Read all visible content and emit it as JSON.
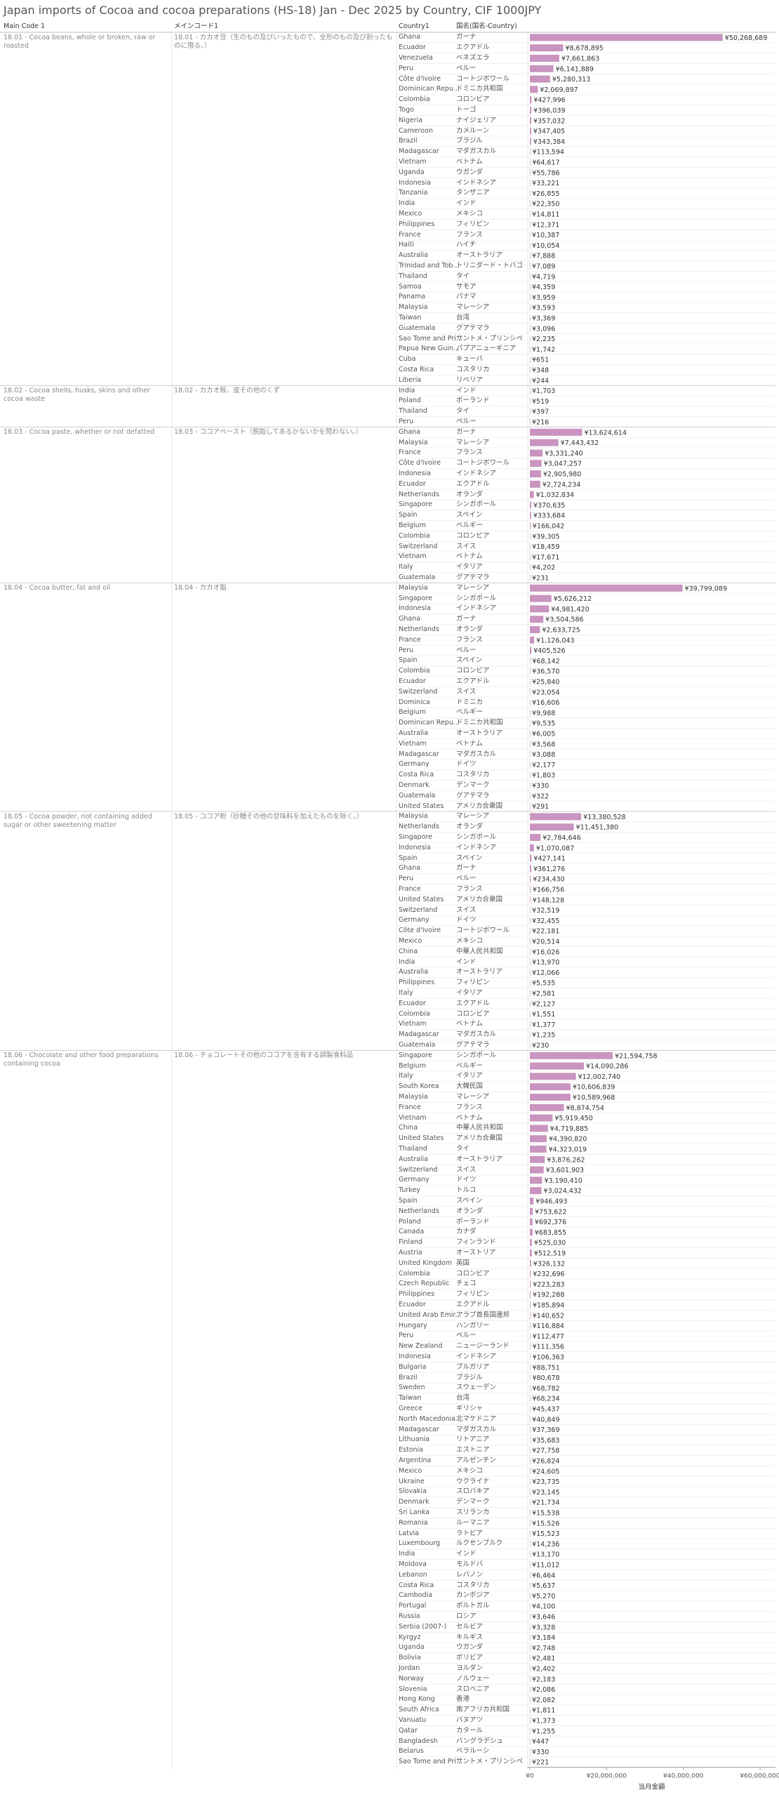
{
  "chart_data": {
    "type": "bar",
    "title": "Japan imports of Cocoa and cocoa preparations (HS-18) Jan - Dec 2025 by Country, CIF 1000JPY",
    "headers": [
      "Main Code 1",
      "メインコード1",
      "Country1",
      "国名(国名-Country)"
    ],
    "x_label": "当月金額",
    "color": "#c994bf",
    "xlim": [
      0,
      60000000
    ],
    "xticks": [
      {
        "value": 0,
        "label": "¥0"
      },
      {
        "value": 20000000,
        "label": "¥20,000,000"
      },
      {
        "value": 40000000,
        "label": "¥40,000,000"
      },
      {
        "value": 60000000,
        "label": "¥60,000,000"
      }
    ],
    "groups": [
      {
        "code": "18.01 - Cocoa beans, whole or broken, raw or roasted",
        "code_jp": "18.01 - カカオ豆（生のもの及びいったもので、全形のもの及び割ったものに限る。）",
        "categories": [
          "Ghana",
          "Ecuador",
          "Venezuela",
          "Peru",
          "Côte d'Ivoire",
          "Dominican Repu...",
          "Colombia",
          "Togo",
          "Nigeria",
          "Cameroon",
          "Brazil",
          "Madagascar",
          "Vietnam",
          "Uganda",
          "Indonesia",
          "Tanzania",
          "India",
          "Mexico",
          "Philippines",
          "France",
          "Haiti",
          "Australia",
          "Trinidad and Tob...",
          "Thailand",
          "Samoa",
          "Panama",
          "Malaysia",
          "Taiwan",
          "Guatemala",
          "Sao Tome and Pri...",
          "Papua New Guin...",
          "Cuba",
          "Costa Rica",
          "Liberia"
        ],
        "categories_jp": [
          "ガーナ",
          "エクアドル",
          "ベネズエラ",
          "ペルー",
          "コートジボワール",
          "ドミニカ共和国",
          "コロンビア",
          "トーゴ",
          "ナイジェリア",
          "カメルーン",
          "ブラジル",
          "マダガスカル",
          "ベトナム",
          "ウガンダ",
          "インドネシア",
          "タンザニア",
          "インド",
          "メキシコ",
          "フィリピン",
          "フランス",
          "ハイチ",
          "オーストラリア",
          "トリニダード・トバゴ",
          "タイ",
          "サモア",
          "パナマ",
          "マレーシア",
          "台湾",
          "グアテマラ",
          "サントメ・プリンシペ",
          "パプアニューギニア",
          "キューバ",
          "コスタリカ",
          "リベリア"
        ],
        "values": [
          50268689,
          8678895,
          7661863,
          6141889,
          5280313,
          2069897,
          427996,
          396039,
          357032,
          347405,
          343384,
          113594,
          64617,
          55786,
          33221,
          26855,
          22350,
          14811,
          12371,
          10387,
          10054,
          7888,
          7089,
          4719,
          4359,
          3959,
          3593,
          3369,
          3096,
          2235,
          1742,
          651,
          348,
          244
        ],
        "value_labels": [
          "¥50,268,689",
          "¥8,678,895",
          "¥7,661,863",
          "¥6,141,889",
          "¥5,280,313",
          "¥2,069,897",
          "¥427,996",
          "¥396,039",
          "¥357,032",
          "¥347,405",
          "¥343,384",
          "¥113,594",
          "¥64,617",
          "¥55,786",
          "¥33,221",
          "¥26,855",
          "¥22,350",
          "¥14,811",
          "¥12,371",
          "¥10,387",
          "¥10,054",
          "¥7,888",
          "¥7,089",
          "¥4,719",
          "¥4,359",
          "¥3,959",
          "¥3,593",
          "¥3,369",
          "¥3,096",
          "¥2,235",
          "¥1,742",
          "¥651",
          "¥348",
          "¥244"
        ]
      },
      {
        "code": "18.02 - Cocoa shells, husks, skins and other cocoa waste",
        "code_jp": "18.02 - カカオ殻、皮その他のくず",
        "categories": [
          "India",
          "Poland",
          "Thailand",
          "Peru"
        ],
        "categories_jp": [
          "インド",
          "ポーランド",
          "タイ",
          "ペルー"
        ],
        "values": [
          1703,
          519,
          397,
          216
        ],
        "value_labels": [
          "¥1,703",
          "¥519",
          "¥397",
          "¥216"
        ]
      },
      {
        "code": "18.03 - Cocoa paste, whether or not defatted",
        "code_jp": "18.03 - ココアペースト（脱脂してあるかないかを問わない。）",
        "categories": [
          "Ghana",
          "Malaysia",
          "France",
          "Côte d'Ivoire",
          "Indonesia",
          "Ecuador",
          "Netherlands",
          "Singapore",
          "Spain",
          "Belgium",
          "Colombia",
          "Switzerland",
          "Vietnam",
          "Italy",
          "Guatemala"
        ],
        "categories_jp": [
          "ガーナ",
          "マレーシア",
          "フランス",
          "コートジボワール",
          "インドネシア",
          "エクアドル",
          "オランダ",
          "シンガポール",
          "スペイン",
          "ベルギー",
          "コロンビア",
          "スイス",
          "ベトナム",
          "イタリア",
          "グアテマラ"
        ],
        "values": [
          13624614,
          7443432,
          3331240,
          3047257,
          2905980,
          2724234,
          1032834,
          370635,
          333684,
          166042,
          39305,
          18459,
          17671,
          4202,
          231
        ],
        "value_labels": [
          "¥13,624,614",
          "¥7,443,432",
          "¥3,331,240",
          "¥3,047,257",
          "¥2,905,980",
          "¥2,724,234",
          "¥1,032,834",
          "¥370,635",
          "¥333,684",
          "¥166,042",
          "¥39,305",
          "¥18,459",
          "¥17,671",
          "¥4,202",
          "¥231"
        ]
      },
      {
        "code": "18.04 - Cocoa butter, fat and oil",
        "code_jp": "18.04 - カカオ脂",
        "categories": [
          "Malaysia",
          "Singapore",
          "Indonesia",
          "Ghana",
          "Netherlands",
          "France",
          "Peru",
          "Spain",
          "Colombia",
          "Ecuador",
          "Switzerland",
          "Dominica",
          "Belgium",
          "Dominican Repu...",
          "Australia",
          "Vietnam",
          "Madagascar",
          "Germany",
          "Costa Rica",
          "Denmark",
          "Guatemala",
          "United States"
        ],
        "categories_jp": [
          "マレーシア",
          "シンガポール",
          "インドネシア",
          "ガーナ",
          "オランダ",
          "フランス",
          "ペルー",
          "スペイン",
          "コロンビア",
          "エクアドル",
          "スイス",
          "ドミニカ",
          "ベルギー",
          "ドミニカ共和国",
          "オーストラリア",
          "ベトナム",
          "マダガスカル",
          "ドイツ",
          "コスタリカ",
          "デンマーク",
          "グアテマラ",
          "アメリカ合衆国"
        ],
        "values": [
          39799089,
          5626212,
          4981420,
          3504586,
          2633725,
          1126043,
          405526,
          68142,
          36570,
          25840,
          23054,
          16606,
          9988,
          9535,
          6005,
          3568,
          3088,
          2177,
          1803,
          330,
          322,
          291
        ],
        "value_labels": [
          "¥39,799,089",
          "¥5,626,212",
          "¥4,981,420",
          "¥3,504,586",
          "¥2,633,725",
          "¥1,126,043",
          "¥405,526",
          "¥68,142",
          "¥36,570",
          "¥25,840",
          "¥23,054",
          "¥16,606",
          "¥9,988",
          "¥9,535",
          "¥6,005",
          "¥3,568",
          "¥3,088",
          "¥2,177",
          "¥1,803",
          "¥330",
          "¥322",
          "¥291"
        ]
      },
      {
        "code": "18.05 - Cocoa powder, not containing added sugar or other sweetening matter",
        "code_jp": "18.05 - ココア粉（砂糖その他の甘味料を加えたものを除く。）",
        "categories": [
          "Malaysia",
          "Netherlands",
          "Singapore",
          "Indonesia",
          "Spain",
          "Ghana",
          "Peru",
          "France",
          "United States",
          "Switzerland",
          "Germany",
          "Côte d'Ivoire",
          "Mexico",
          "China",
          "India",
          "Australia",
          "Philippines",
          "Italy",
          "Ecuador",
          "Colombia",
          "Vietnam",
          "Madagascar",
          "Guatemala"
        ],
        "categories_jp": [
          "マレーシア",
          "オランダ",
          "シンガポール",
          "インドネシア",
          "スペイン",
          "ガーナ",
          "ペルー",
          "フランス",
          "アメリカ合衆国",
          "スイス",
          "ドイツ",
          "コートジボワール",
          "メキシコ",
          "中華人民共和国",
          "インド",
          "オーストラリア",
          "フィリピン",
          "イタリア",
          "エクアドル",
          "コロンビア",
          "ベトナム",
          "マダガスカル",
          "グアテマラ"
        ],
        "values": [
          13380528,
          11451380,
          2784646,
          1070087,
          427141,
          361276,
          234430,
          166756,
          148128,
          32519,
          32455,
          22181,
          20514,
          16026,
          13970,
          12066,
          5535,
          2581,
          2127,
          1551,
          1377,
          1235,
          230
        ],
        "value_labels": [
          "¥13,380,528",
          "¥11,451,380",
          "¥2,784,646",
          "¥1,070,087",
          "¥427,141",
          "¥361,276",
          "¥234,430",
          "¥166,756",
          "¥148,128",
          "¥32,519",
          "¥32,455",
          "¥22,181",
          "¥20,514",
          "¥16,026",
          "¥13,970",
          "¥12,066",
          "¥5,535",
          "¥2,581",
          "¥2,127",
          "¥1,551",
          "¥1,377",
          "¥1,235",
          "¥230"
        ]
      },
      {
        "code": "18.06 - Chocolate and other food preparations containing cocoa",
        "code_jp": "18.06 - チョコレートその他のココアを含有する調製食料品",
        "categories": [
          "Singapore",
          "Belgium",
          "Italy",
          "South Korea",
          "Malaysia",
          "France",
          "Vietnam",
          "China",
          "United States",
          "Thailand",
          "Australia",
          "Switzerland",
          "Germany",
          "Turkey",
          "Spain",
          "Netherlands",
          "Poland",
          "Canada",
          "Finland",
          "Austria",
          "United Kingdom",
          "Colombia",
          "Czech Republic",
          "Philippines",
          "Ecuador",
          "United Arab Emir...",
          "Hungary",
          "Peru",
          "New Zealand",
          "Indonesia",
          "Bulgaria",
          "Brazil",
          "Sweden",
          "Taiwan",
          "Greece",
          "North Macedonia",
          "Madagascar",
          "Lithuania",
          "Estonia",
          "Argentina",
          "Mexico",
          "Ukraine",
          "Slovakia",
          "Denmark",
          "Sri Lanka",
          "Romania",
          "Latvia",
          "Luxembourg",
          "India",
          "Moldova",
          "Lebanon",
          "Costa Rica",
          "Cambodia",
          "Portugal",
          "Russia",
          "Serbia (2007-)",
          "Kyrgyz",
          "Uganda",
          "Bolivia",
          "Jordan",
          "Norway",
          "Slovenia",
          "Hong Kong",
          "South Africa",
          "Vanuatu",
          "Qatar",
          "Bangladesh",
          "Belarus",
          "Sao Tome and Pri..."
        ],
        "categories_jp": [
          "シンガポール",
          "ベルギー",
          "イタリア",
          "大韓民国",
          "マレーシア",
          "フランス",
          "ベトナム",
          "中華人民共和国",
          "アメリカ合衆国",
          "タイ",
          "オーストラリア",
          "スイス",
          "ドイツ",
          "トルコ",
          "スペイン",
          "オランダ",
          "ポーランド",
          "カナダ",
          "フィンランド",
          "オーストリア",
          "英国",
          "コロンビア",
          "チェコ",
          "フィリピン",
          "エクアドル",
          "アラブ首長国連邦",
          "ハンガリー",
          "ペルー",
          "ニュージーランド",
          "インドネシア",
          "ブルガリア",
          "ブラジル",
          "スウェーデン",
          "台湾",
          "ギリシャ",
          "北マケドニア",
          "マダガスカル",
          "リトアニア",
          "エストニア",
          "アルゼンチン",
          "メキシコ",
          "ウクライナ",
          "スロバキア",
          "デンマーク",
          "スリランカ",
          "ルーマニア",
          "ラトビア",
          "ルクセンブルク",
          "インド",
          "モルドバ",
          "レバノン",
          "コスタリカ",
          "カンボジア",
          "ポルトガル",
          "ロシア",
          "セルビア",
          "キルギス",
          "ウガンダ",
          "ボリビア",
          "ヨルダン",
          "ノルウェー",
          "スロベニア",
          "香港",
          "南アフリカ共和国",
          "バヌアツ",
          "カタール",
          "バングラデシュ",
          "ベラルーシ",
          "サントメ・プリンシペ"
        ],
        "values": [
          21594758,
          14090286,
          12002740,
          10606839,
          10589968,
          8874754,
          5919450,
          4719885,
          4390820,
          4323019,
          3876262,
          3601903,
          3190410,
          3024432,
          946493,
          753622,
          692376,
          683855,
          525030,
          512519,
          326132,
          232696,
          223283,
          192288,
          185894,
          140652,
          116884,
          112477,
          111356,
          106363,
          88751,
          80678,
          68782,
          68234,
          45437,
          40849,
          37369,
          35683,
          27758,
          26824,
          24605,
          23735,
          23145,
          21734,
          15538,
          15526,
          15523,
          14236,
          13170,
          11012,
          6464,
          5637,
          5270,
          4100,
          3646,
          3328,
          3184,
          2748,
          2481,
          2402,
          2183,
          2086,
          2082,
          1811,
          1373,
          1255,
          447,
          330,
          221
        ],
        "value_labels": [
          "¥21,594,758",
          "¥14,090,286",
          "¥12,002,740",
          "¥10,606,839",
          "¥10,589,968",
          "¥8,874,754",
          "¥5,919,450",
          "¥4,719,885",
          "¥4,390,820",
          "¥4,323,019",
          "¥3,876,262",
          "¥3,601,903",
          "¥3,190,410",
          "¥3,024,432",
          "¥946,493",
          "¥753,622",
          "¥692,376",
          "¥683,855",
          "¥525,030",
          "¥512,519",
          "¥326,132",
          "¥232,696",
          "¥223,283",
          "¥192,288",
          "¥185,894",
          "¥140,652",
          "¥116,884",
          "¥112,477",
          "¥111,356",
          "¥106,363",
          "¥88,751",
          "¥80,678",
          "¥68,782",
          "¥68,234",
          "¥45,437",
          "¥40,849",
          "¥37,369",
          "¥35,683",
          "¥27,758",
          "¥26,824",
          "¥24,605",
          "¥23,735",
          "¥23,145",
          "¥21,734",
          "¥15,538",
          "¥15,526",
          "¥15,523",
          "¥14,236",
          "¥13,170",
          "¥11,012",
          "¥6,464",
          "¥5,637",
          "¥5,270",
          "¥4,100",
          "¥3,646",
          "¥3,328",
          "¥3,184",
          "¥2,748",
          "¥2,481",
          "¥2,402",
          "¥2,183",
          "¥2,086",
          "¥2,082",
          "¥1,811",
          "¥1,373",
          "¥1,255",
          "¥447",
          "¥330",
          "¥221"
        ]
      }
    ]
  }
}
